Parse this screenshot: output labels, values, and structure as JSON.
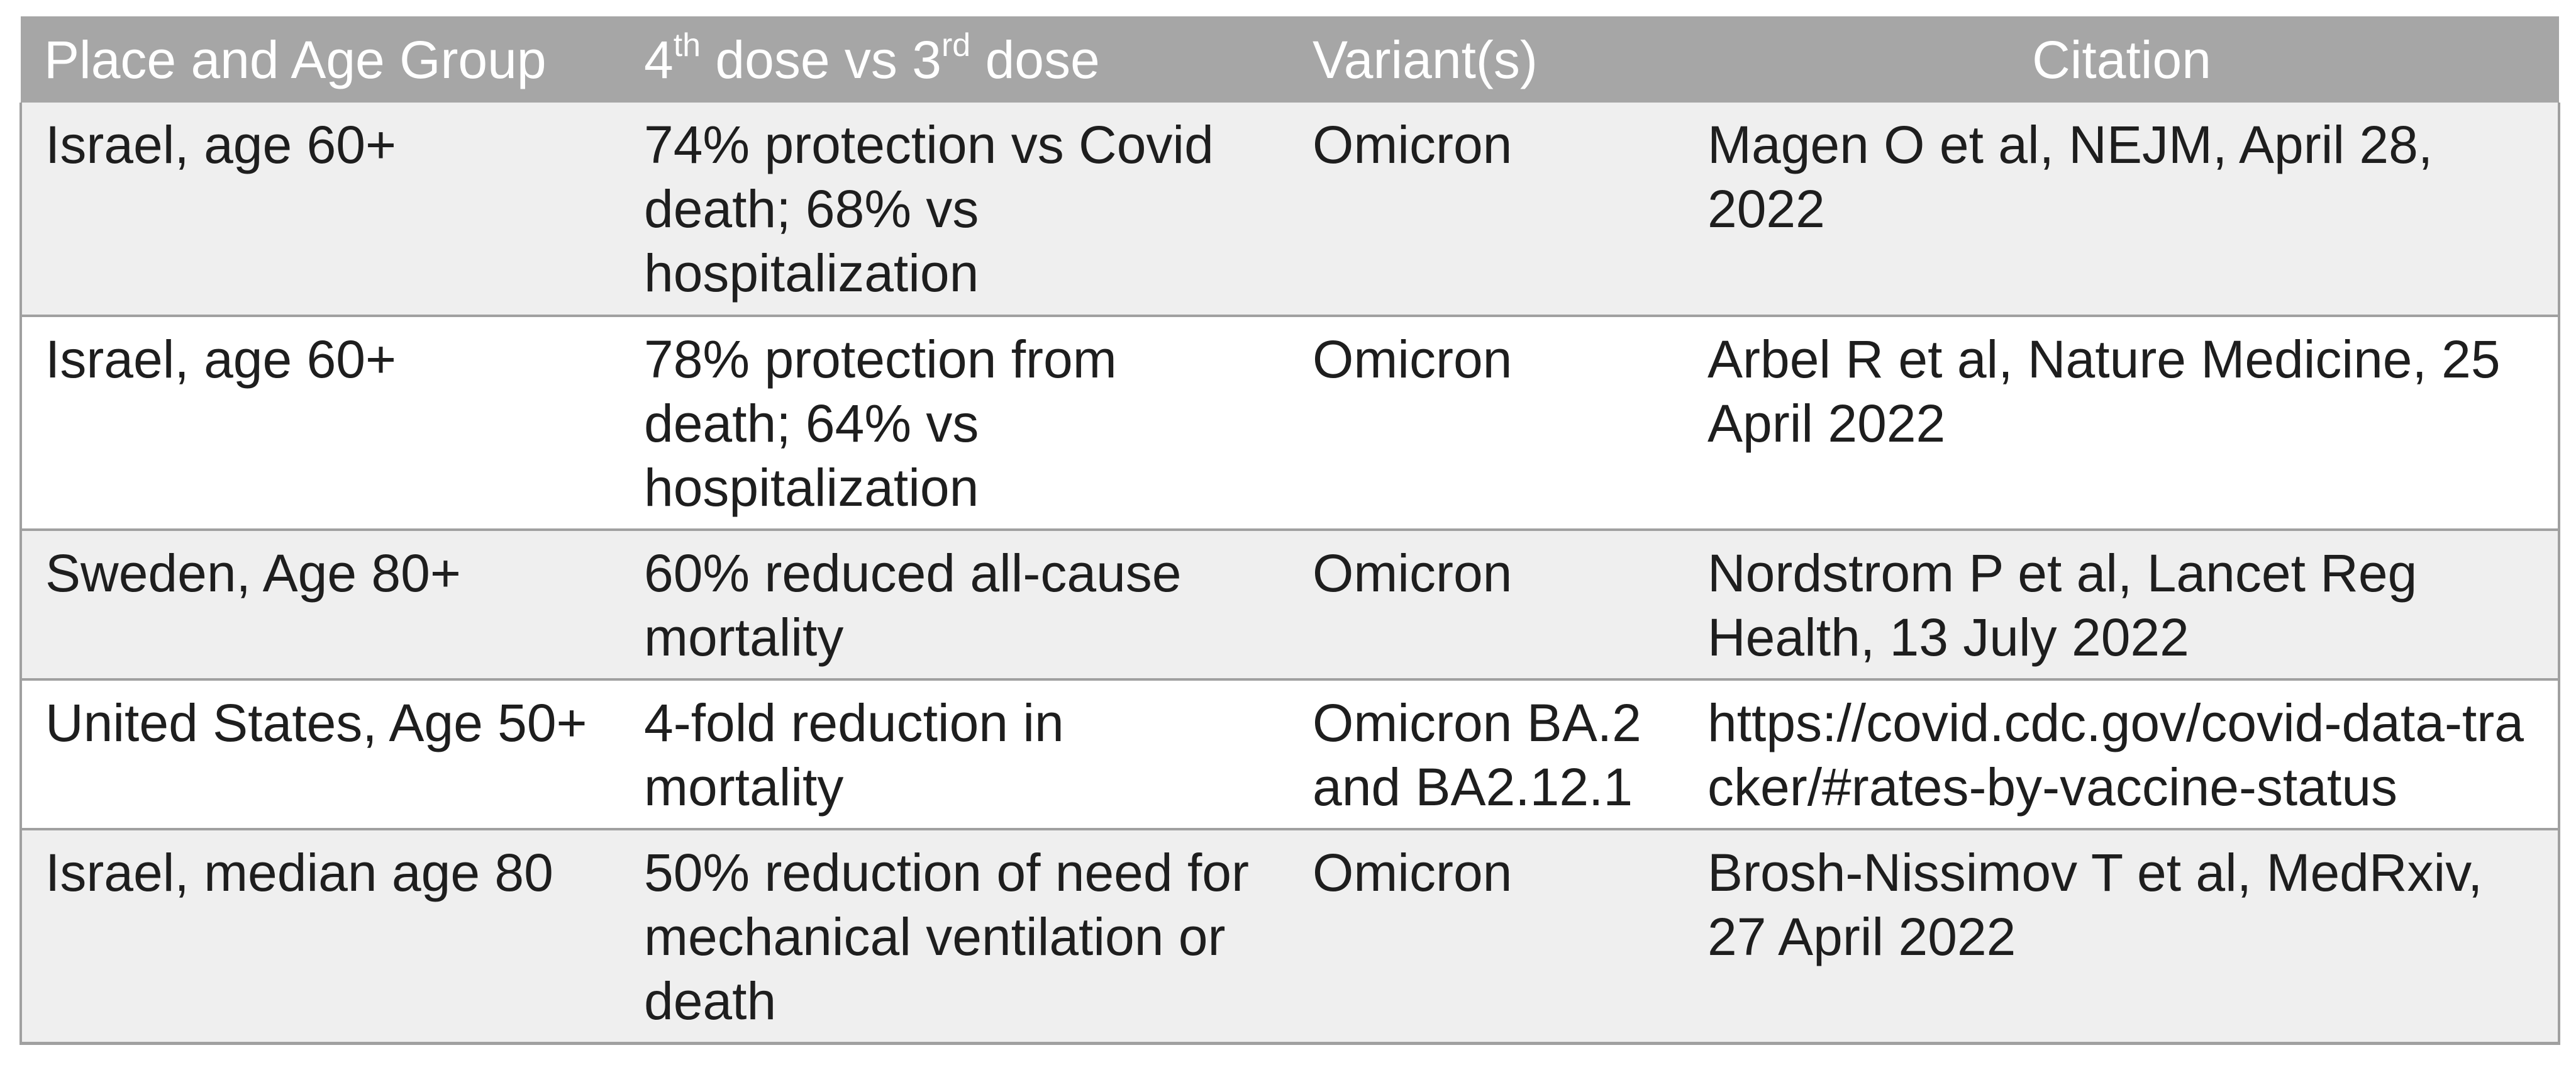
{
  "header": {
    "col1": "Place and Age Group",
    "col2_pre": "4",
    "col2_sup1": "th",
    "col2_mid": " dose vs 3",
    "col2_sup2": "rd",
    "col2_post": " dose",
    "col3": "Variant(s)",
    "col4": "Citation"
  },
  "rows": [
    {
      "place": "Israel, age 60+",
      "result": "74% protection vs Covid death; 68% vs hospitalization",
      "variant": "Omicron",
      "citation": "Magen O et al, NEJM, April 28, 2022"
    },
    {
      "place": "Israel, age 60+",
      "result": "78% protection from death; 64% vs hospitalization",
      "variant": "Omicron",
      "citation": "Arbel R et al, Nature Medicine, 25 April 2022"
    },
    {
      "place": "Sweden, Age 80+",
      "result": "60% reduced all-cause mortality",
      "variant": "Omicron",
      "citation": "Nordstrom P et al, Lancet Reg Health, 13 July 2022"
    },
    {
      "place": "United States, Age 50+",
      "result": "4-fold reduction in mortality",
      "variant": "Omicron BA.2 and  BA2.12.1",
      "citation": "https://covid.cdc.gov/covid-data-tracker/#rates-by-vaccine-status"
    },
    {
      "place": "Israel, median age 80",
      "result": "50% reduction of need for mechanical ventilation or death",
      "variant": "Omicron",
      "citation": "Brosh-Nissimov T et al, MedRxiv, 27 April 2022"
    }
  ],
  "colors": {
    "header_bg": "#a6a6a6",
    "header_text": "#ffffff",
    "band_gray": "#efefef",
    "band_white": "#ffffff",
    "border": "#a0a0a0"
  }
}
